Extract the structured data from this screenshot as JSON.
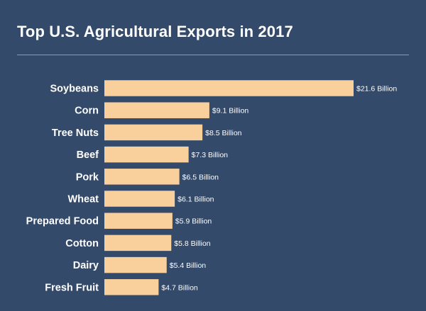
{
  "chart_data": {
    "type": "bar",
    "orientation": "horizontal",
    "title": "Top U.S. Agricultural Exports in 2017",
    "categories": [
      "Soybeans",
      "Corn",
      "Tree Nuts",
      "Beef",
      "Pork",
      "Wheat",
      "Prepared Food",
      "Cotton",
      "Dairy",
      "Fresh Fruit"
    ],
    "values": [
      21.6,
      9.1,
      8.5,
      7.3,
      6.5,
      6.1,
      5.9,
      5.8,
      5.4,
      4.7
    ],
    "value_labels": [
      "$21.6 Billion",
      "$9.1 Billion",
      "$8.5 Billion",
      "$7.3 Billion",
      "$6.5 Billion",
      "$6.1 Billion",
      "$5.9 Billion",
      "$5.8 Billion",
      "$5.4 Billion",
      "$4.7 Billion"
    ],
    "unit": "Billion USD",
    "xlim": [
      0,
      21.6
    ],
    "grid": false,
    "colors": {
      "background": "#334a6a",
      "bar": "#f9cf9c",
      "text": "#ffffff"
    }
  }
}
